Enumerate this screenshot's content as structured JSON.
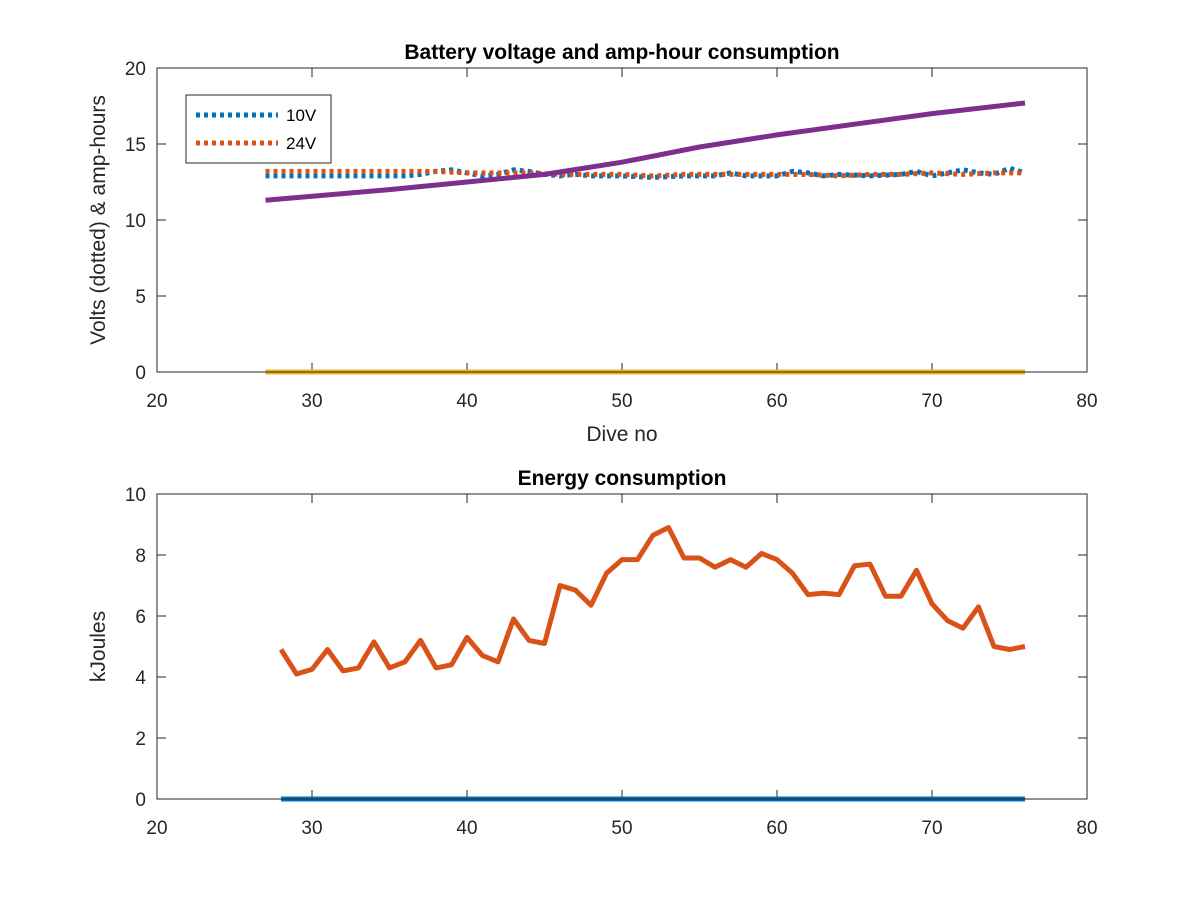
{
  "chart_data": [
    {
      "type": "line",
      "title": "Battery voltage and amp-hour consumption",
      "xlabel": "Dive no",
      "ylabel": "Volts (dotted) & amp-hours",
      "xlim": [
        20,
        80
      ],
      "ylim": [
        0,
        20
      ],
      "xticks": [
        20,
        30,
        40,
        50,
        60,
        70,
        80
      ],
      "yticks": [
        0,
        5,
        10,
        15,
        20
      ],
      "legend": {
        "placement": "top-left",
        "entries": [
          "10V",
          "24V"
        ]
      },
      "grid": false,
      "series": [
        {
          "name": "10V",
          "style": "dotted",
          "color": "#0072BD",
          "x": [
            27,
            30,
            33,
            36,
            37,
            38,
            39,
            40,
            41,
            42,
            43,
            44,
            45,
            46,
            47,
            48,
            50,
            52,
            54,
            56,
            57,
            58,
            60,
            61,
            62,
            63,
            64,
            66,
            68,
            69,
            70,
            71,
            72,
            73,
            74,
            75,
            76
          ],
          "y": [
            12.9,
            12.9,
            12.9,
            12.9,
            13.0,
            13.2,
            13.3,
            13.1,
            12.9,
            13.0,
            13.3,
            13.2,
            13.0,
            12.9,
            13.0,
            12.9,
            12.9,
            12.8,
            12.9,
            12.9,
            13.1,
            12.9,
            12.9,
            13.2,
            13.1,
            12.9,
            13.0,
            12.9,
            13.0,
            13.2,
            12.9,
            13.1,
            13.3,
            13.1,
            13.0,
            13.4,
            13.1
          ]
        },
        {
          "name": "24V",
          "style": "dotted",
          "color": "#D95319",
          "x": [
            27,
            30,
            33,
            36,
            38,
            40,
            42,
            44,
            46,
            48,
            50,
            52,
            54,
            56,
            58,
            60,
            62,
            64,
            66,
            68,
            70,
            72,
            74,
            76
          ],
          "y": [
            13.2,
            13.2,
            13.2,
            13.2,
            13.2,
            13.1,
            13.1,
            13.1,
            13.0,
            13.0,
            13.0,
            12.9,
            13.0,
            13.0,
            13.0,
            13.0,
            13.0,
            12.9,
            13.0,
            13.0,
            13.1,
            13.0,
            13.1,
            13.1
          ]
        },
        {
          "style": "solid",
          "color": "#7E2F8E",
          "x": [
            27,
            35,
            45,
            50,
            55,
            60,
            65,
            70,
            76
          ],
          "y": [
            11.3,
            12.0,
            13.0,
            13.8,
            14.8,
            15.6,
            16.3,
            17.0,
            17.7
          ]
        },
        {
          "style": "solid",
          "color": "#EDB120",
          "x": [
            27,
            76
          ],
          "y": [
            0,
            0
          ]
        }
      ]
    },
    {
      "type": "line",
      "title": "Energy consumption",
      "xlabel": "",
      "ylabel": "kJoules",
      "xlim": [
        20,
        80
      ],
      "ylim": [
        0,
        10
      ],
      "xticks": [
        20,
        30,
        40,
        50,
        60,
        70,
        80
      ],
      "yticks": [
        0,
        2,
        4,
        6,
        8,
        10
      ],
      "grid": false,
      "series": [
        {
          "style": "solid",
          "color": "#D95319",
          "x": [
            28,
            29,
            30,
            31,
            32,
            33,
            34,
            35,
            36,
            37,
            38,
            39,
            40,
            41,
            42,
            43,
            44,
            45,
            46,
            47,
            48,
            49,
            50,
            51,
            52,
            53,
            54,
            55,
            56,
            57,
            58,
            59,
            60,
            61,
            62,
            63,
            64,
            65,
            66,
            67,
            68,
            69,
            70,
            71,
            72,
            73,
            74,
            75,
            76
          ],
          "y": [
            4.9,
            4.1,
            4.25,
            4.9,
            4.2,
            4.3,
            5.15,
            4.3,
            4.5,
            5.2,
            4.3,
            4.4,
            5.3,
            4.7,
            4.5,
            5.9,
            5.2,
            5.1,
            7.0,
            6.85,
            6.35,
            7.4,
            7.85,
            7.85,
            8.65,
            8.9,
            7.9,
            7.9,
            7.6,
            7.85,
            7.6,
            8.05,
            7.85,
            7.4,
            6.7,
            6.75,
            6.7,
            7.65,
            7.7,
            6.65,
            6.65,
            7.5,
            6.4,
            5.85,
            5.6,
            6.3,
            5.0,
            4.9,
            5.0
          ]
        },
        {
          "style": "solid",
          "color": "#0072BD",
          "x": [
            28,
            76
          ],
          "y": [
            0,
            0
          ]
        }
      ]
    }
  ]
}
